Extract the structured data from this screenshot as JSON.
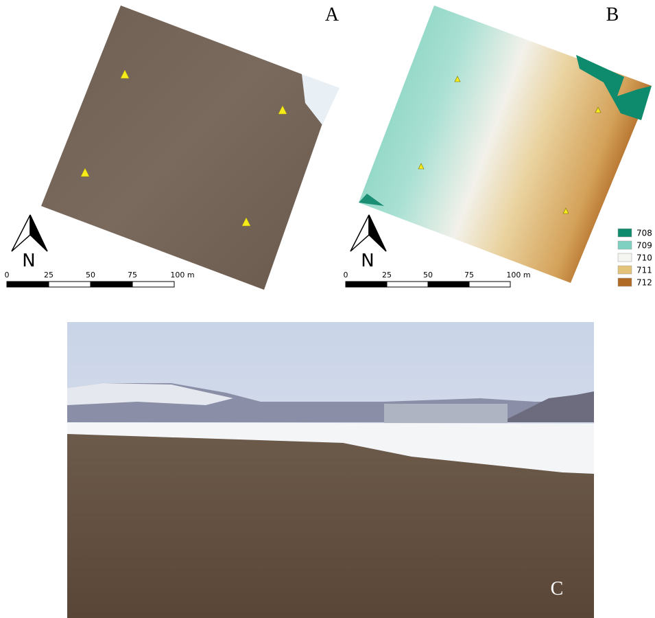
{
  "panels": [
    {
      "label": "A",
      "north": "N",
      "scale": [
        "0",
        "25",
        "50",
        "75",
        "100 m"
      ]
    },
    {
      "label": "B",
      "north": "N",
      "scale": [
        "0",
        "25",
        "50",
        "75",
        "100 m"
      ],
      "legend": [
        {
          "label": "708",
          "color": "#0e8a6c"
        },
        {
          "label": "709",
          "color": "#7fd0c0"
        },
        {
          "label": "710",
          "color": "#f4f4f0"
        },
        {
          "label": "711",
          "color": "#e3c27a"
        },
        {
          "label": "712",
          "color": "#b06a26"
        }
      ]
    },
    {
      "label": "C"
    }
  ]
}
